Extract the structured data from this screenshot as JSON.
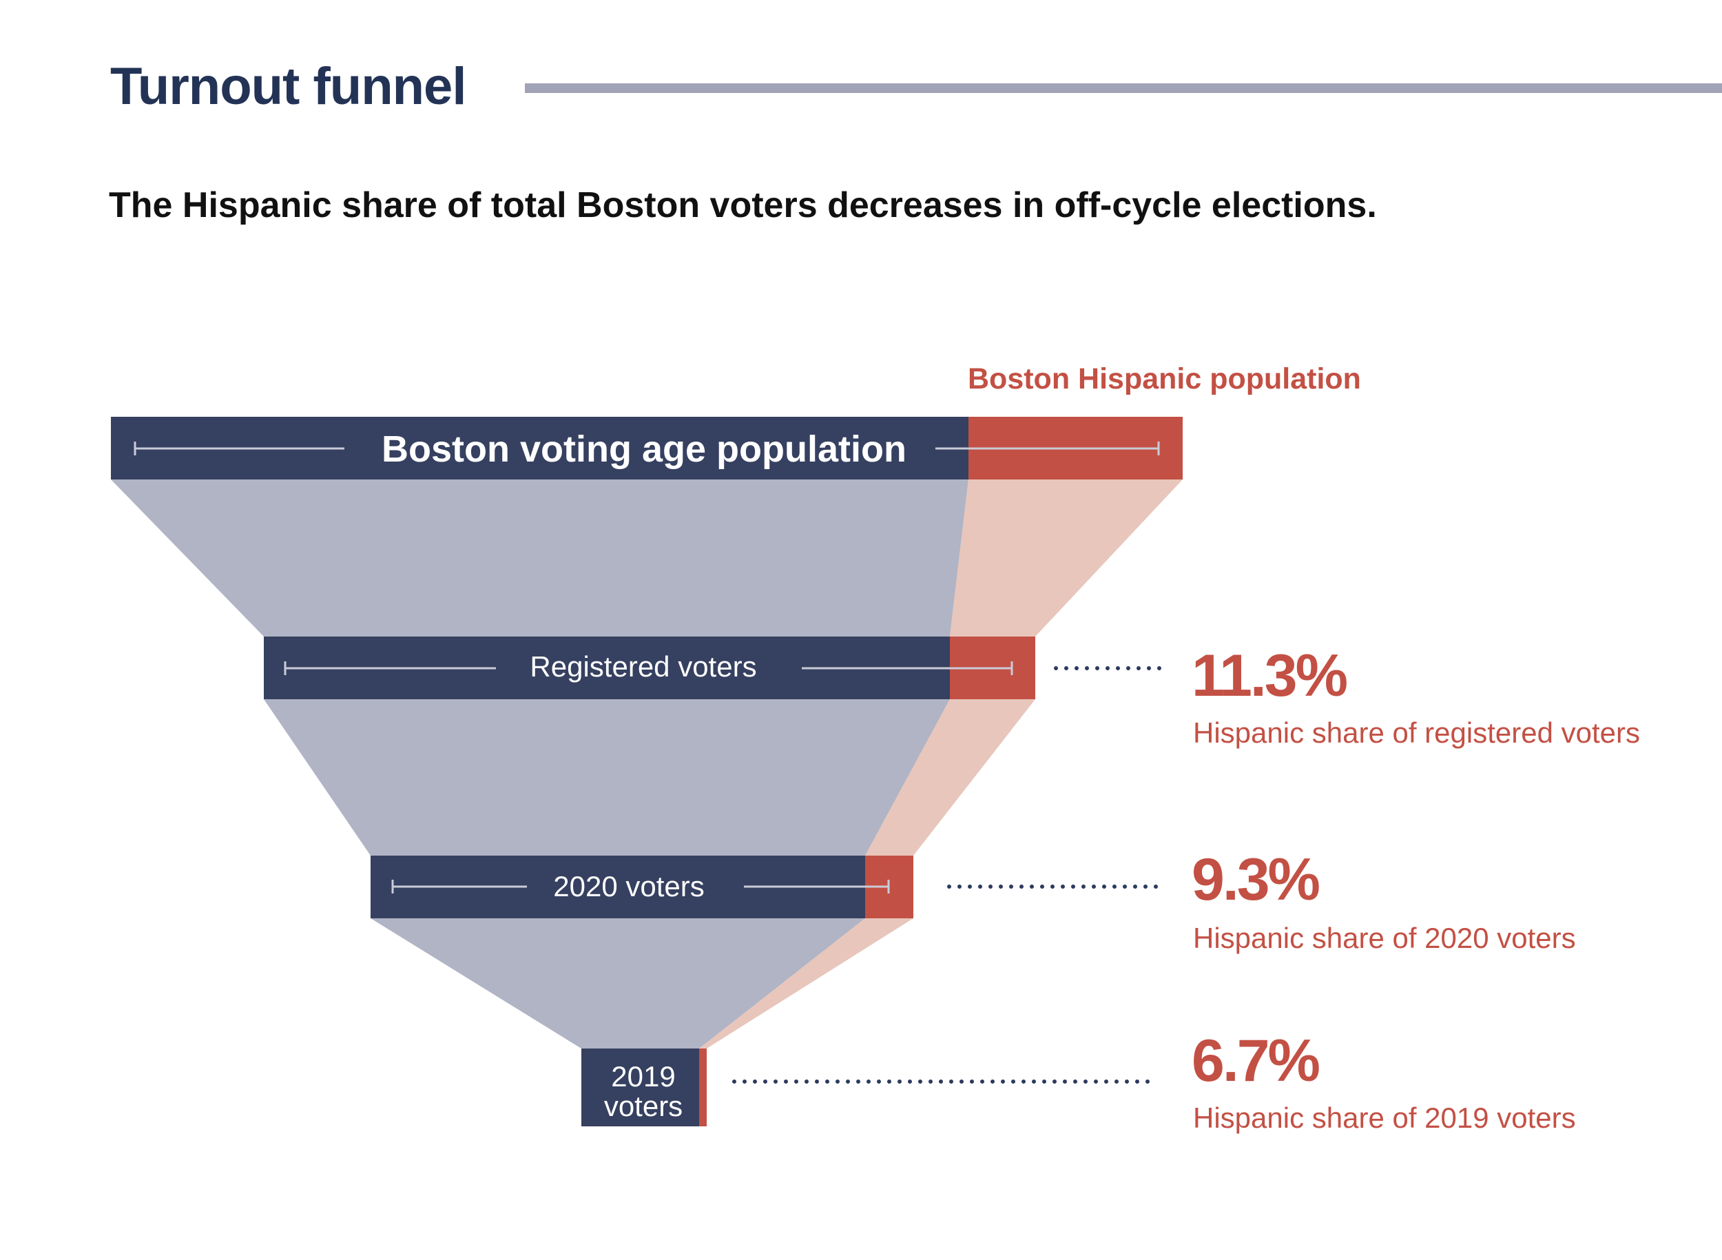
{
  "header": {
    "title": "Turnout funnel",
    "subtitle": "The Hispanic share of total Boston voters decreases in off-cycle elections."
  },
  "colors": {
    "navy": "#364060",
    "red": "#c35044",
    "funnel_gray": "#b0b4c5",
    "funnel_pink": "#e8c6bb",
    "dots": "#2c3a5e",
    "rule": "#a0a4b6"
  },
  "chart_data": {
    "type": "funnel",
    "title": "Turnout funnel",
    "subtitle": "The Hispanic share of total Boston voters decreases in off-cycle elections.",
    "legend": "Boston Hispanic population",
    "stages": [
      {
        "name": "Boston voting age population",
        "hispanic_share": 20.0,
        "share_label": "",
        "share_caption": ""
      },
      {
        "name": "Registered voters",
        "hispanic_share": 11.3,
        "share_label": "11.3%",
        "share_caption": "Hispanic share of registered voters"
      },
      {
        "name": "2020 voters",
        "hispanic_share": 9.3,
        "share_label": "9.3%",
        "share_caption": "Hispanic share of 2020 voters"
      },
      {
        "name_lines": [
          "2019",
          "voters"
        ],
        "hispanic_share": 6.7,
        "share_label": "6.7%",
        "share_caption": "Hispanic share of 2019 voters"
      }
    ]
  }
}
